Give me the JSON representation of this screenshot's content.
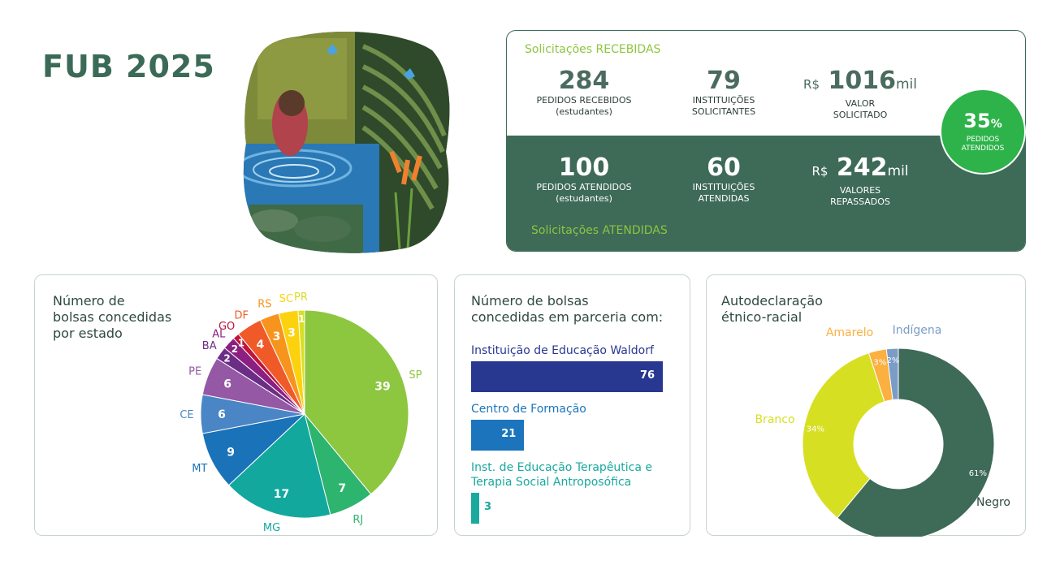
{
  "title": "FUB 2025",
  "painting_image": "painting of a person bathing in a pond with blue butterflies and tropical plants",
  "received": {
    "label": "Solicitações RECEBIDAS",
    "items": [
      {
        "value": "284",
        "caption": "PEDIDOS RECEBIDOS",
        "sub": "(estudantes)"
      },
      {
        "value": "79",
        "caption": "INSTITUIÇÕES",
        "sub": "SOLICITANTES"
      },
      {
        "currency": "R$",
        "value": "1016",
        "unit": "mil",
        "caption": "VALOR",
        "sub": "SOLICITADO"
      }
    ]
  },
  "attended": {
    "label": "Solicitações ATENDIDAS",
    "items": [
      {
        "value": "100",
        "caption": "PEDIDOS ATENDIDOS",
        "sub": "(estudantes)"
      },
      {
        "value": "60",
        "caption": "INSTITUIÇÕES",
        "sub": "ATENDIDAS"
      },
      {
        "currency": "R$",
        "value": "242",
        "unit": "mil",
        "caption": "VALORES",
        "sub": "REPASSADOS"
      }
    ]
  },
  "badge": {
    "value": "35",
    "unit": "%",
    "line1": "PEDIDOS",
    "line2": "ATENDIDOS"
  },
  "chart_data": [
    {
      "type": "pie",
      "title": [
        "Número de",
        "bolsas concedidas",
        "por estado"
      ],
      "slices": [
        {
          "label": "SP",
          "value": 39,
          "color": "#8dc63f"
        },
        {
          "label": "RJ",
          "value": 7,
          "color": "#2db46e"
        },
        {
          "label": "MG",
          "value": 17,
          "color": "#13a89e"
        },
        {
          "label": "MT",
          "value": 9,
          "color": "#1a72b9"
        },
        {
          "label": "CE",
          "value": 6,
          "color": "#4a86c6"
        },
        {
          "label": "PE",
          "value": 6,
          "color": "#9458a4"
        },
        {
          "label": "BA",
          "value": 2,
          "color": "#6c2d86"
        },
        {
          "label": "AL",
          "value": 2,
          "color": "#8b2080"
        },
        {
          "label": "GO",
          "value": 1,
          "color": "#c0143c"
        },
        {
          "label": "DF",
          "value": 4,
          "color": "#f05a28"
        },
        {
          "label": "RS",
          "value": 3,
          "color": "#f7941d"
        },
        {
          "label": "SC",
          "value": 3,
          "color": "#fcd20f"
        },
        {
          "label": "PR",
          "value": 1,
          "color": "#d7df23"
        }
      ]
    },
    {
      "type": "bar",
      "title": [
        "Número de bolsas",
        "concedidas em parceria com:"
      ],
      "categories": [
        "Instituição de Educação Waldorf",
        "Centro de Formação",
        "Inst. de Educação Terapêutica e\nTerapia Social Antroposófica"
      ],
      "values": [
        76,
        21,
        3
      ],
      "colors": [
        "#283891",
        "#1c75bc",
        "#19a99d"
      ]
    },
    {
      "type": "pie",
      "donut": true,
      "title": [
        "Autodeclaração",
        "étnico-racial"
      ],
      "slices": [
        {
          "label": "Negro",
          "value": 61,
          "text": "61%",
          "color": "#3e6a58"
        },
        {
          "label": "Branco",
          "value": 34,
          "text": "34%",
          "color": "#d7df23"
        },
        {
          "label": "Amarelo",
          "value": 3,
          "text": "3%",
          "color": "#fbb040"
        },
        {
          "label": "Indígena",
          "value": 2,
          "text": "2%",
          "color": "#7c9cc8"
        }
      ]
    }
  ]
}
